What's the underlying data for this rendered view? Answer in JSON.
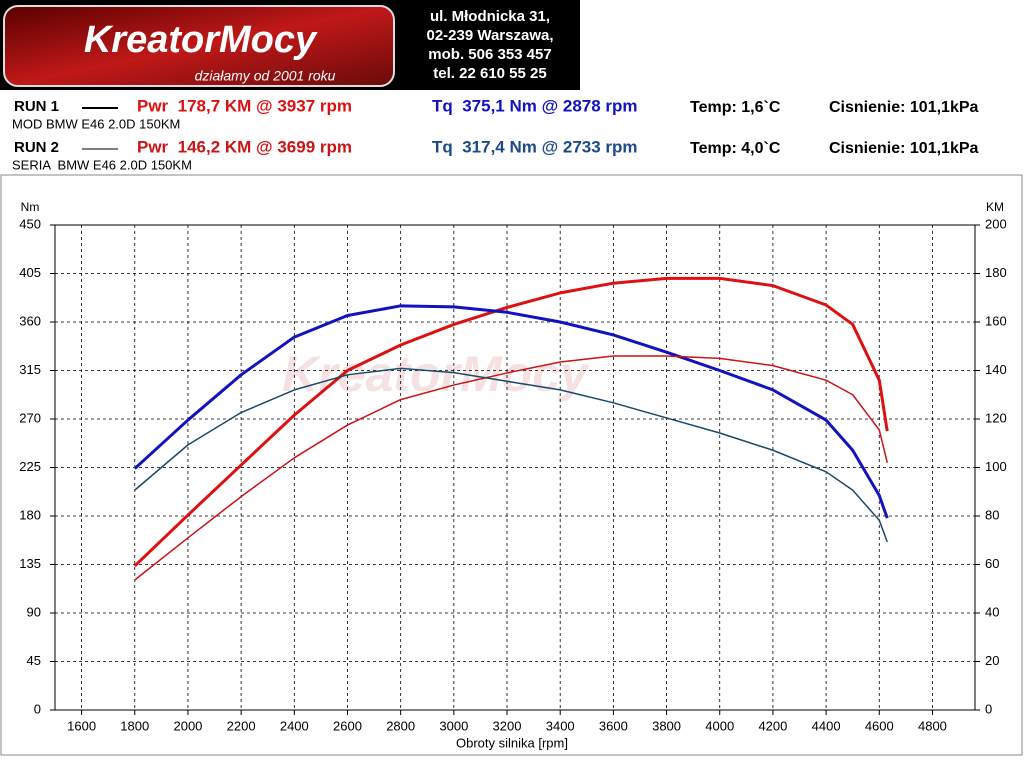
{
  "header": {
    "logo": "KreatorMocy",
    "slogan": "działamy od 2001 roku",
    "address": [
      "ul. Młodnicka 31,",
      "02-239  Warszawa,",
      "mob.  506 353 457",
      "tel.  22 610 55 25"
    ]
  },
  "runs": [
    {
      "label": "RUN 1",
      "description": "MOD BMW E46 2.0D 150KM",
      "temp": "Temp: 1,6`C",
      "pressure": "Cisnienie: 101,1kPa"
    },
    {
      "label": "RUN 2",
      "description": "SERIA  BMW E46 2.0D 150KM",
      "temp": "Temp: 4,0`C",
      "pressure": "Cisnienie: 101,1kPa"
    }
  ],
  "chart_data": {
    "type": "line",
    "xlabel": "Obroty silnika [rpm]",
    "ylabel": "Nm",
    "y2label": "KM",
    "x": [
      1800,
      2000,
      2200,
      2400,
      2600,
      2800,
      3000,
      3200,
      3400,
      3600,
      3800,
      4000,
      4200,
      4400,
      4500,
      4600,
      4630
    ],
    "xlim": [
      1500,
      4960
    ],
    "xticks": [
      1600,
      1800,
      2000,
      2200,
      2400,
      2600,
      2800,
      3000,
      3200,
      3400,
      3600,
      3800,
      4000,
      4200,
      4400,
      4600,
      4800
    ],
    "ylim": [
      0,
      450
    ],
    "yticks": [
      0,
      45,
      90,
      135,
      180,
      225,
      270,
      315,
      360,
      405,
      450
    ],
    "y2lim": [
      0,
      200
    ],
    "y2ticks": [
      0,
      20,
      40,
      60,
      80,
      100,
      120,
      140,
      160,
      180,
      200
    ],
    "grid": true,
    "series": [
      {
        "name": "Pwr  178,7 KM @ 3937 rpm",
        "color": "#dd1111",
        "width": 3,
        "axis": "y2",
        "values": [
          59.4,
          80.4,
          101,
          121.6,
          140,
          150.5,
          159,
          166,
          172,
          176,
          178,
          178,
          175,
          167,
          159,
          136,
          115
        ]
      },
      {
        "name": "Tq  375,1 Nm @ 2878 rpm",
        "color": "#1212c0",
        "width": 3,
        "values": [
          224,
          269,
          311,
          346,
          366,
          375,
          374,
          369,
          360,
          348,
          332,
          315,
          297,
          269,
          241,
          199,
          178
        ]
      },
      {
        "name": "Pwr  146,2 KM @ 3699 rpm",
        "color": "#cc1414",
        "width": 1.5,
        "axis": "y2",
        "values": [
          53.6,
          71,
          88,
          104,
          117.5,
          128,
          134,
          139,
          143.5,
          146,
          146,
          145,
          142,
          136,
          130,
          115.5,
          102
        ]
      },
      {
        "name": "Tq  317,4 Nm @ 2733 rpm",
        "color": "#1a4a6a",
        "width": 1.5,
        "values": [
          204,
          246,
          276,
          297,
          311,
          317,
          313,
          305,
          297,
          285,
          271,
          257,
          241,
          221,
          204,
          176,
          156
        ]
      }
    ]
  }
}
